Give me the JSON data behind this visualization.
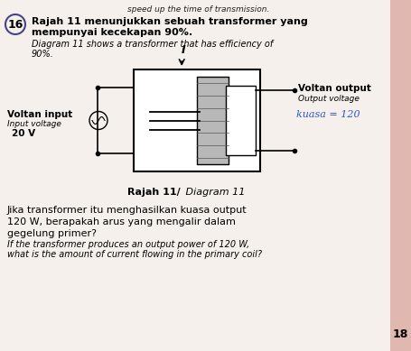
{
  "bg_color": "#f0ddd8",
  "page_bg": "#f5f0eb",
  "pink_strip_color": "#e0b8b0",
  "top_text": "speed up the time of transmission.",
  "question_num": "16",
  "malay_line1": "Rajah 11 menunjukkan sebuah transformer yang",
  "malay_line2": "mempunyai kecekapan 90%.",
  "english_line1": "Diagram 11 shows a transformer that has efficiency of",
  "english_line2": "90%.",
  "left_label1": "Voltan input",
  "left_label2": "Input voltage",
  "left_label3": "20 V",
  "right_label1": "Voltan output",
  "right_label2": "Output voltage",
  "handwritten": "kuasa = 120",
  "current_label": "I",
  "diagram_caption_bold": "Rajah 11/",
  "diagram_caption_italic": " Diagram 11",
  "body_malay1": "Jika transformer itu menghasilkan kuasa output",
  "body_malay2": "120 W, berapakah arus yang mengalir dalam",
  "body_malay3": "gegelung primer?",
  "body_eng1": "If the transformer produces an output power of 120 W,",
  "body_eng2": "what is the amount of current flowing in the primary coil?",
  "page_num": "18",
  "transformer_outline_color": "#888888",
  "core_fill": "#a0a0a0",
  "wire_color": "#333333"
}
